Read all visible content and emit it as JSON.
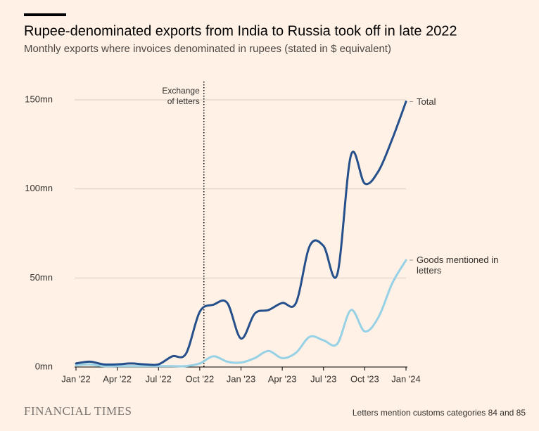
{
  "chart_data": {
    "type": "line",
    "title": "Rupee-denominated exports from India to Russia took off in late 2022",
    "subtitle": "Monthly exports where invoices denominated in rupees (stated in $ equivalent)",
    "categories": [
      "Jan '22",
      null,
      null,
      "Apr '22",
      null,
      null,
      "Jul '22",
      null,
      null,
      "Oct '22",
      null,
      null,
      "Jan '23",
      null,
      null,
      "Apr '23",
      null,
      null,
      "Jul '23",
      null,
      null,
      "Oct '23",
      null,
      null,
      "Jan '24"
    ],
    "series": [
      {
        "name": "Total",
        "color": "#25508b",
        "values": [
          2,
          3,
          1.5,
          1.5,
          2,
          1.5,
          1.5,
          6,
          7.5,
          31,
          35,
          36,
          16,
          30,
          32,
          36,
          36,
          68,
          68,
          52,
          119,
          103,
          110,
          128,
          149
        ]
      },
      {
        "name": "Goods mentioned in letters",
        "color": "#96d1e6",
        "values": [
          1,
          1.5,
          0.5,
          0.5,
          0.5,
          0.5,
          0.5,
          0.5,
          0.5,
          2,
          6,
          3,
          2.5,
          5,
          9,
          5,
          8,
          17,
          15,
          13,
          32,
          20,
          28,
          47,
          60
        ]
      }
    ],
    "ylim": [
      0,
      150
    ],
    "yticks": [
      {
        "value": 0,
        "label": "0mn"
      },
      {
        "value": 50,
        "label": "50mn"
      },
      {
        "value": 100,
        "label": "100mn"
      },
      {
        "value": 150,
        "label": "150mn"
      }
    ],
    "grid": true,
    "annotation": {
      "text": "Exchange of letters",
      "x": 9.3
    },
    "source": "Letters mention customs categories 84 and 85",
    "publisher": "FINANCIAL TIMES"
  }
}
